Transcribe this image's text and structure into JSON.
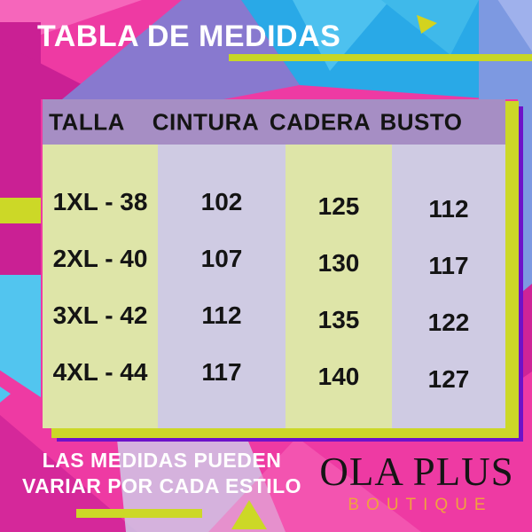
{
  "chart_data": {
    "type": "table",
    "title": "TABLA DE MEDIDAS",
    "columns": [
      "TALLA",
      "CINTURA",
      "CADERA",
      "BUSTO"
    ],
    "rows": [
      [
        "1XL - 38",
        "102",
        "125",
        "112"
      ],
      [
        "2XL - 40",
        "107",
        "130",
        "117"
      ],
      [
        "3XL - 42",
        "112",
        "135",
        "122"
      ],
      [
        "4XL - 44",
        "117",
        "140",
        "127"
      ]
    ]
  },
  "note": {
    "line1": "LAS MEDIDAS PUEDEN",
    "line2": "VARIAR POR CADA ESTILO"
  },
  "brand": {
    "name": "OLA PLUS",
    "tagline": "BOUTIQUE"
  },
  "colors": {
    "background_pink": "#ee3aa3",
    "magenta": "#ca2094",
    "cyan": "#29a9e7",
    "periwinkle": "#7d99e1",
    "title_purple": "#8879cf",
    "lime": "#ccd827",
    "header_purple": "#a68ec4",
    "column_green": "#dee5a8",
    "column_lavender": "#cfcbe3",
    "outline_violet": "#6e12c9",
    "brand_orange": "#f0a23e",
    "text_black": "#141414",
    "text_white": "#ffffff"
  }
}
